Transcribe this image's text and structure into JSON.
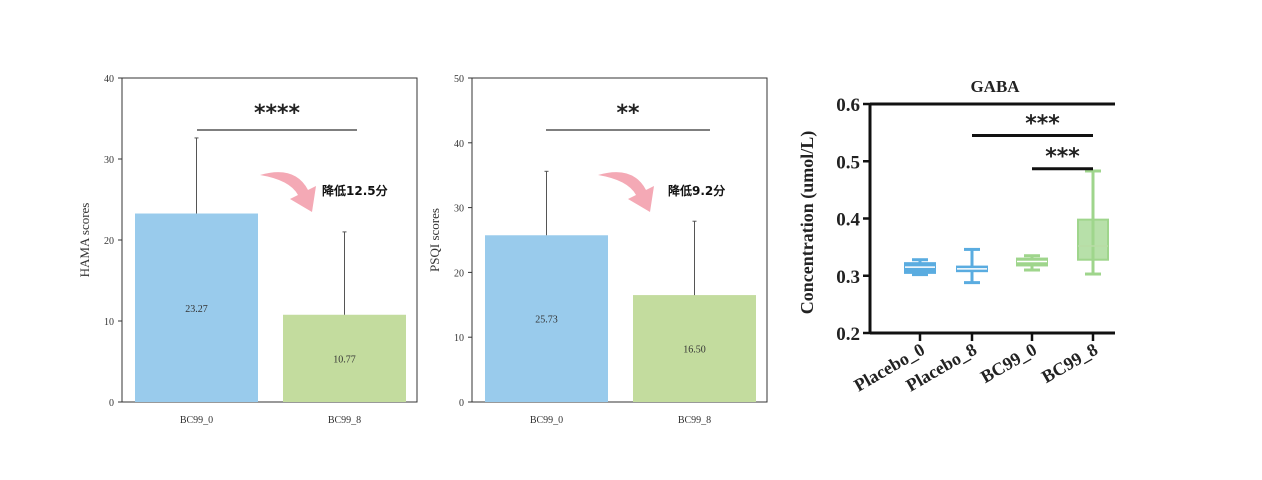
{
  "chart_data": [
    {
      "type": "bar",
      "title": "",
      "xlabel": "",
      "ylabel": "HAMA scores",
      "ylim": [
        0,
        40
      ],
      "yticks": [
        0,
        10,
        20,
        30,
        40
      ],
      "categories": [
        "BC99_0",
        "BC99_8"
      ],
      "values": [
        23.27,
        10.77
      ],
      "value_labels": [
        "23.27",
        "10.77"
      ],
      "error_upper": [
        32.6,
        21.0
      ],
      "colors": [
        "#99cbec",
        "#c3dc9e"
      ],
      "significance": "****",
      "annotation": "降低12.5分"
    },
    {
      "type": "bar",
      "title": "",
      "xlabel": "",
      "ylabel": "PSQI scores",
      "ylim": [
        0,
        50
      ],
      "yticks": [
        0,
        10,
        20,
        30,
        40,
        50
      ],
      "categories": [
        "BC99_0",
        "BC99_8"
      ],
      "values": [
        25.73,
        16.5
      ],
      "value_labels": [
        "25.73",
        "16.50"
      ],
      "error_upper": [
        35.6,
        27.9
      ],
      "colors": [
        "#99cbec",
        "#c3dc9e"
      ],
      "significance": "**",
      "annotation": "降低9.2分"
    },
    {
      "type": "box",
      "title": "GABA",
      "xlabel": "",
      "ylabel": "Concentration (umol/L)",
      "ylim": [
        0.2,
        0.6
      ],
      "yticks": [
        "0.2",
        "0.3",
        "0.4",
        "0.5",
        "0.6"
      ],
      "categories": [
        "Placebo_0",
        "Placebo_8",
        "BC99_0",
        "BC99_8"
      ],
      "boxes": [
        {
          "min": 0.302,
          "q1": 0.305,
          "median": 0.315,
          "q3": 0.322,
          "max": 0.328,
          "color": "#5aace0"
        },
        {
          "min": 0.288,
          "q1": 0.308,
          "median": 0.312,
          "q3": 0.316,
          "max": 0.346,
          "color": "#5aace0"
        },
        {
          "min": 0.31,
          "q1": 0.318,
          "median": 0.325,
          "q3": 0.33,
          "max": 0.335,
          "color": "#9fd58c"
        },
        {
          "min": 0.303,
          "q1": 0.328,
          "median": 0.352,
          "q3": 0.398,
          "max": 0.483,
          "color": "#9fd58c"
        }
      ],
      "significance": [
        {
          "from": "Placebo_8",
          "to": "BC99_8",
          "y": 0.545,
          "label": "***"
        },
        {
          "from": "BC99_0",
          "to": "BC99_8",
          "y": 0.487,
          "label": "***"
        }
      ]
    }
  ]
}
